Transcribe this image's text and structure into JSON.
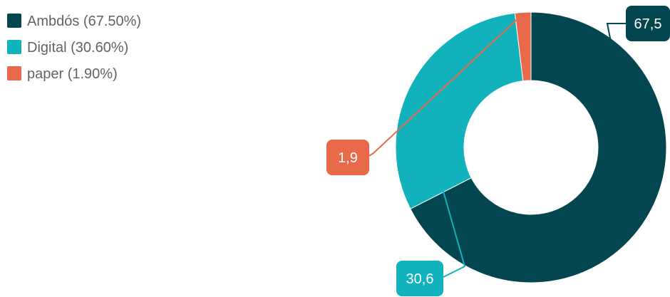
{
  "chart_data": {
    "type": "pie",
    "donut": true,
    "slices": [
      {
        "label": "Ambdós (67.50%)",
        "value": 67.5,
        "data_label": "67,5",
        "color": "#03464f"
      },
      {
        "label": "Digital (30.60%)",
        "value": 30.6,
        "data_label": "30,6",
        "color": "#12b2bc"
      },
      {
        "label": "paper (1.90%)",
        "value": 1.9,
        "data_label": "1,9",
        "color": "#e86a4b"
      }
    ],
    "legend_position": "top-left"
  }
}
